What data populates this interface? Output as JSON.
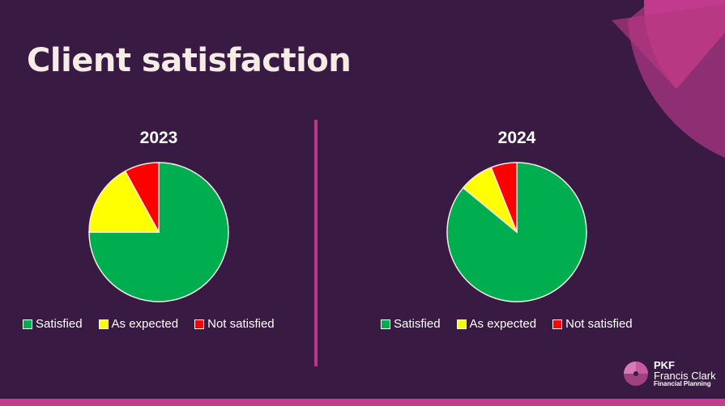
{
  "slide": {
    "title": "Client satisfaction"
  },
  "logo": {
    "line1": "PKF",
    "line2": "Francis Clark",
    "line3": "Financial Planning"
  },
  "chart_data": [
    {
      "type": "pie",
      "title": "2023",
      "categories": [
        "Satisfied",
        "As expected",
        "Not satisfied"
      ],
      "values": [
        75,
        17,
        8
      ],
      "colors": [
        "#00ad4f",
        "#ffff00",
        "#ff0000"
      ],
      "legend": "bottom"
    },
    {
      "type": "pie",
      "title": "2024",
      "categories": [
        "Satisfied",
        "As expected",
        "Not satisfied"
      ],
      "values": [
        86,
        8,
        6
      ],
      "colors": [
        "#00ad4f",
        "#ffff00",
        "#ff0000"
      ],
      "legend": "bottom"
    }
  ]
}
